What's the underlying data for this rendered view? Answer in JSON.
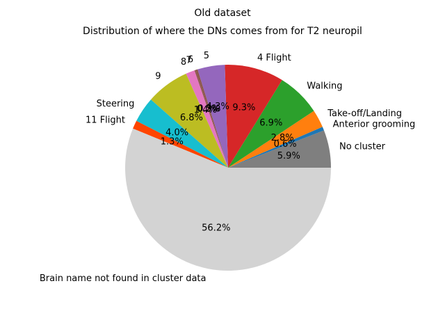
{
  "chart_data": {
    "type": "pie",
    "suptitle": "Old dataset",
    "title": "Distribution of where the DNs comes from for T2 neuropil",
    "start_angle": 0,
    "direction": "counterclockwise",
    "slices": [
      {
        "label": "No cluster",
        "value": 5.9,
        "pct_label": "5.9%",
        "color": "#7f7f7f"
      },
      {
        "label": "Anterior grooming",
        "value": 0.6,
        "pct_label": "0.6%",
        "color": "#1f77b4"
      },
      {
        "label": "Take-off/Landing",
        "value": 2.8,
        "pct_label": "2.8%",
        "color": "#ff7f0e"
      },
      {
        "label": "Walking",
        "value": 6.9,
        "pct_label": "6.9%",
        "color": "#2ca02c"
      },
      {
        "label": "4 Flight",
        "value": 9.3,
        "pct_label": "9.3%",
        "color": "#d62728"
      },
      {
        "label": "5",
        "value": 4.3,
        "pct_label": "4.3%",
        "color": "#9467bd"
      },
      {
        "label": "6",
        "value": 0.3,
        "pct_label": "0.3%",
        "color": "#8c564b"
      },
      {
        "label": "7",
        "value": 0.2,
        "pct_label": "0.2%",
        "color": "#8c564b"
      },
      {
        "label": "8",
        "value": 1.4,
        "pct_label": "1.4%",
        "color": "#e377c2"
      },
      {
        "label": "9",
        "value": 6.8,
        "pct_label": "6.8%",
        "color": "#bcbd22"
      },
      {
        "label": "Steering",
        "value": 4.0,
        "pct_label": "4.0%",
        "color": "#17becf"
      },
      {
        "label": "11 Flight",
        "value": 1.3,
        "pct_label": "1.3%",
        "color": "#ff4500"
      },
      {
        "label": "Brain name not found in cluster data",
        "value": 56.2,
        "pct_label": "56.2%",
        "color": "#d3d3d3"
      }
    ]
  }
}
